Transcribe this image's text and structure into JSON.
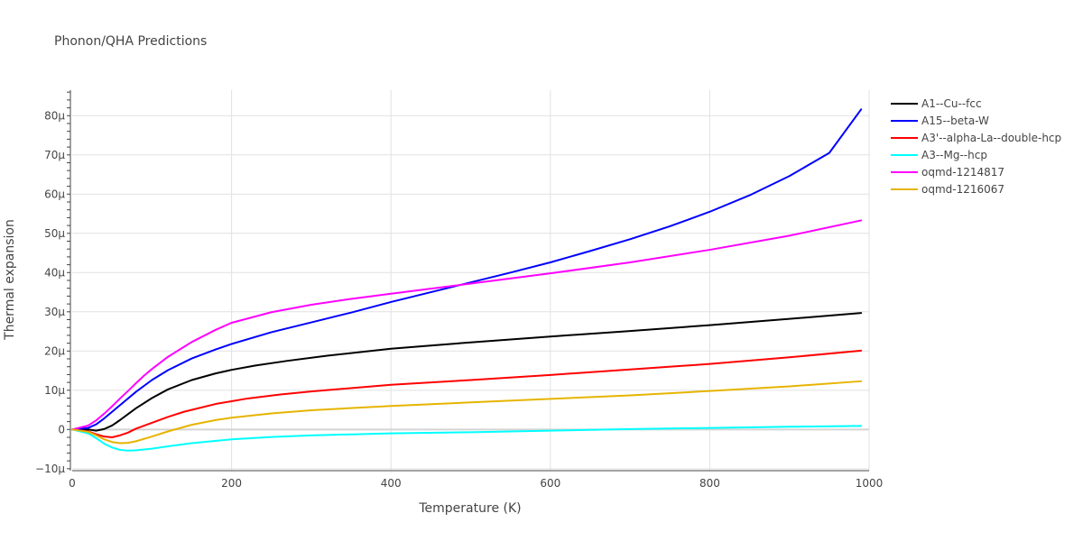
{
  "chart_data": {
    "type": "line",
    "title": "Phonon/QHA Predictions",
    "xlabel": "Temperature (K)",
    "ylabel": "Thermal expansion",
    "xlim": [
      0,
      1000
    ],
    "ylim": [
      -10.5,
      86.5
    ],
    "x_ticks": [
      0,
      200,
      400,
      600,
      800,
      1000
    ],
    "x_tick_labels": [
      "0",
      "200",
      "400",
      "600",
      "800",
      "1000"
    ],
    "y_ticks": [
      -10,
      0,
      10,
      20,
      30,
      40,
      50,
      60,
      70,
      80
    ],
    "y_tick_labels": [
      "−10μ",
      "0",
      "10μ",
      "20μ",
      "30μ",
      "40μ",
      "50μ",
      "60μ",
      "70μ",
      "80μ"
    ],
    "y_unit_note": "values in units of 1e-6 (μ)",
    "grid": true,
    "legend_position": "right",
    "series": [
      {
        "name": "A1--Cu--fcc",
        "color": "#000000",
        "x": [
          0,
          20,
          30,
          40,
          50,
          60,
          70,
          80,
          100,
          120,
          150,
          180,
          200,
          230,
          270,
          320,
          400,
          500,
          600,
          700,
          800,
          900,
          990
        ],
        "y": [
          0,
          0,
          -0.3,
          0.1,
          1.0,
          2.4,
          3.9,
          5.4,
          8.0,
          10.2,
          12.6,
          14.3,
          15.2,
          16.3,
          17.5,
          18.8,
          20.6,
          22.2,
          23.7,
          25.1,
          26.6,
          28.2,
          29.7
        ]
      },
      {
        "name": "A15--beta-W",
        "color": "#0000ff",
        "x": [
          0,
          20,
          30,
          40,
          50,
          60,
          80,
          100,
          120,
          150,
          180,
          200,
          250,
          300,
          350,
          400,
          450,
          500,
          550,
          600,
          650,
          700,
          750,
          800,
          850,
          900,
          950,
          990
        ],
        "y": [
          0,
          0.4,
          1.3,
          2.8,
          4.5,
          6.2,
          9.6,
          12.6,
          15.1,
          18.1,
          20.4,
          21.8,
          24.8,
          27.3,
          29.8,
          32.5,
          35.0,
          37.5,
          40.0,
          42.6,
          45.5,
          48.5,
          51.8,
          55.5,
          59.7,
          64.6,
          70.5,
          81.6
        ]
      },
      {
        "name": "A3'--alpha-La--double-hcp",
        "color": "#ff0000",
        "x": [
          0,
          20,
          30,
          40,
          50,
          60,
          70,
          80,
          100,
          120,
          140,
          160,
          180,
          200,
          220,
          260,
          300,
          400,
          500,
          600,
          700,
          800,
          900,
          990
        ],
        "y": [
          0,
          -0.5,
          -1.2,
          -1.8,
          -2.0,
          -1.5,
          -0.8,
          0.2,
          1.7,
          3.2,
          4.5,
          5.5,
          6.5,
          7.2,
          7.9,
          8.9,
          9.7,
          11.4,
          12.6,
          13.9,
          15.3,
          16.7,
          18.4,
          20.1
        ]
      },
      {
        "name": "A3--Mg--hcp",
        "color": "#00ffff",
        "x": [
          0,
          20,
          30,
          40,
          50,
          60,
          70,
          80,
          100,
          120,
          150,
          200,
          250,
          300,
          400,
          500,
          600,
          700,
          800,
          900,
          990
        ],
        "y": [
          0,
          -1.0,
          -2.2,
          -3.6,
          -4.6,
          -5.2,
          -5.4,
          -5.3,
          -4.9,
          -4.3,
          -3.5,
          -2.5,
          -1.9,
          -1.5,
          -1.0,
          -0.7,
          -0.3,
          0.1,
          0.4,
          0.7,
          0.9
        ]
      },
      {
        "name": "oqmd-1214817",
        "color": "#ff00ff",
        "x": [
          0,
          20,
          30,
          40,
          50,
          60,
          70,
          80,
          90,
          100,
          120,
          150,
          180,
          200,
          250,
          300,
          350,
          400,
          500,
          600,
          700,
          800,
          900,
          990
        ],
        "y": [
          0,
          1.0,
          2.3,
          4.0,
          5.9,
          7.9,
          9.8,
          11.8,
          13.7,
          15.4,
          18.5,
          22.3,
          25.4,
          27.2,
          29.9,
          31.8,
          33.3,
          34.6,
          37.2,
          39.8,
          42.6,
          45.8,
          49.4,
          53.3
        ]
      },
      {
        "name": "oqmd-1216067",
        "color": "#e6b400",
        "x": [
          0,
          20,
          30,
          40,
          50,
          60,
          70,
          80,
          100,
          120,
          150,
          180,
          200,
          250,
          300,
          400,
          500,
          600,
          700,
          800,
          900,
          990
        ],
        "y": [
          0,
          -0.6,
          -1.5,
          -2.5,
          -3.2,
          -3.5,
          -3.4,
          -3.0,
          -1.8,
          -0.5,
          1.2,
          2.4,
          3.0,
          4.1,
          4.9,
          6.0,
          6.9,
          7.8,
          8.7,
          9.8,
          11.0,
          12.3
        ]
      }
    ]
  }
}
